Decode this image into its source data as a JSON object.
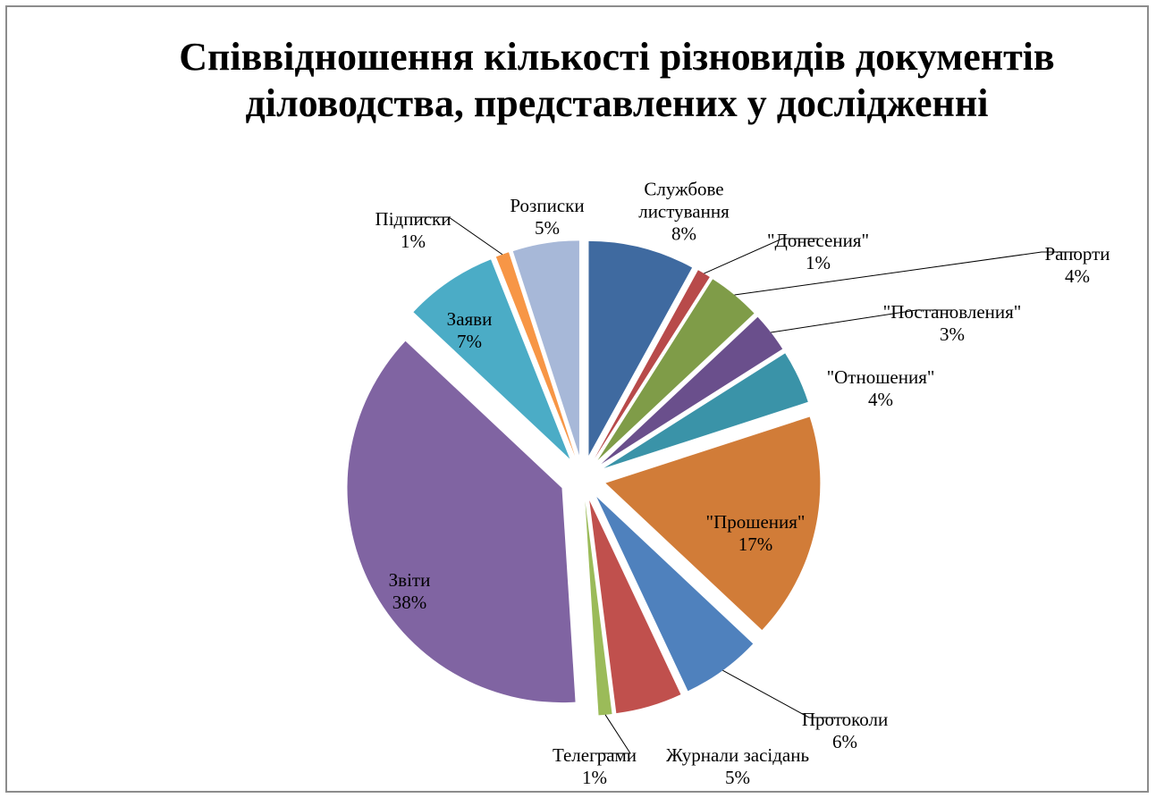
{
  "chart_data": {
    "type": "pie",
    "title": "Співвідношення кількості різновидів документів діловодства, представлених у дослідженні",
    "categories": [
      "Службове листування",
      "\"Донесения\"",
      "Рапорти",
      "\"Постановления\"",
      "\"Отношения\"",
      "\"Прошения\"",
      "Протоколи",
      "Журнали засідань",
      "Телеграми",
      "Звіти",
      "Заяви",
      "Підписки",
      "Розписки"
    ],
    "values": [
      8,
      1,
      4,
      3,
      4,
      17,
      6,
      5,
      1,
      38,
      7,
      1,
      5
    ],
    "value_labels": [
      "8%",
      "1%",
      "4%",
      "3%",
      "4%",
      "17%",
      "6%",
      "5%",
      "1%",
      "38%",
      "7%",
      "1%",
      "5%"
    ],
    "colors": [
      "#3f6aa0",
      "#b84a4a",
      "#7f9c48",
      "#6a4f8c",
      "#3a93a8",
      "#d17c38",
      "#4f81bd",
      "#c0504d",
      "#9bbb59",
      "#8064a2",
      "#4bacc6",
      "#f79646",
      "#a7b8d8"
    ]
  }
}
